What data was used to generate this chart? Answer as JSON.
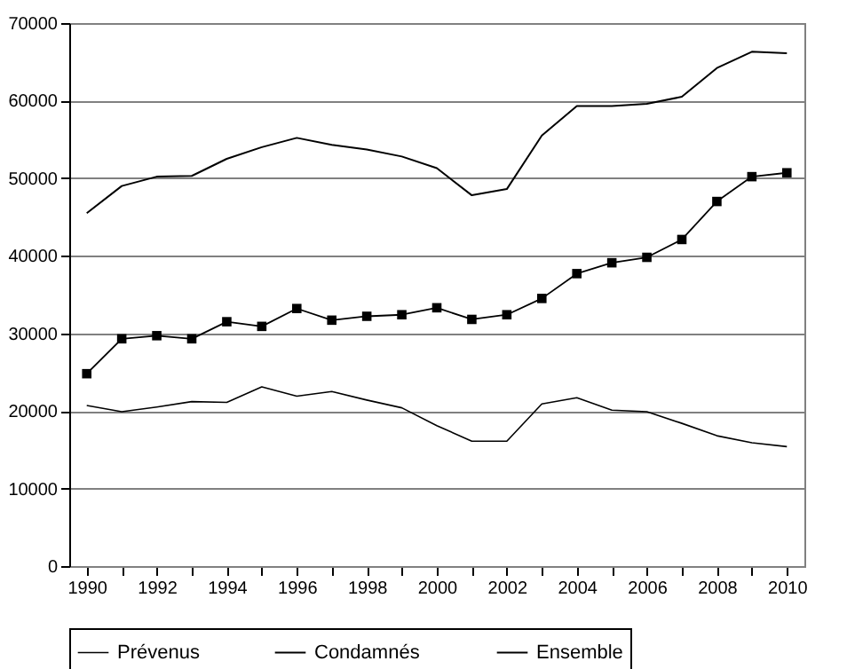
{
  "chart_data": {
    "type": "line",
    "categories": [
      "1990",
      null,
      "1992",
      null,
      "1994",
      null,
      "1996",
      null,
      "1998",
      null,
      "2000",
      null,
      "2002",
      null,
      "2004",
      null,
      "2006",
      null,
      "2008",
      null,
      "2010"
    ],
    "series": [
      {
        "name": "Prévenus",
        "color": "#000000",
        "marker": "none",
        "values": [
          20700,
          19900,
          20500,
          21200,
          21100,
          23100,
          21900,
          22500,
          21400,
          20400,
          18100,
          16100,
          16100,
          20900,
          21700,
          20100,
          19900,
          18400,
          16800,
          15900,
          15400
        ]
      },
      {
        "name": "Condamnés",
        "color": "#000000",
        "marker": "square",
        "values": [
          24800,
          29300,
          29700,
          29300,
          31500,
          30900,
          33200,
          31700,
          32200,
          32400,
          33300,
          31800,
          32400,
          34500,
          37700,
          39100,
          39800,
          42100,
          47000,
          50200,
          50700
        ]
      },
      {
        "name": "Ensemble",
        "color": "#000000",
        "marker": "none",
        "values": [
          45500,
          49000,
          50200,
          50300,
          52500,
          54000,
          55200,
          54300,
          53700,
          52800,
          51300,
          47800,
          48600,
          55500,
          59300,
          59300,
          59600,
          60500,
          64200,
          66300,
          66100
        ]
      }
    ],
    "ylim": [
      0,
      70000
    ],
    "yticks": [
      0,
      10000,
      20000,
      30000,
      40000,
      50000,
      60000,
      70000
    ],
    "grid": "y",
    "legend": "bottom",
    "line_style": "solid"
  }
}
